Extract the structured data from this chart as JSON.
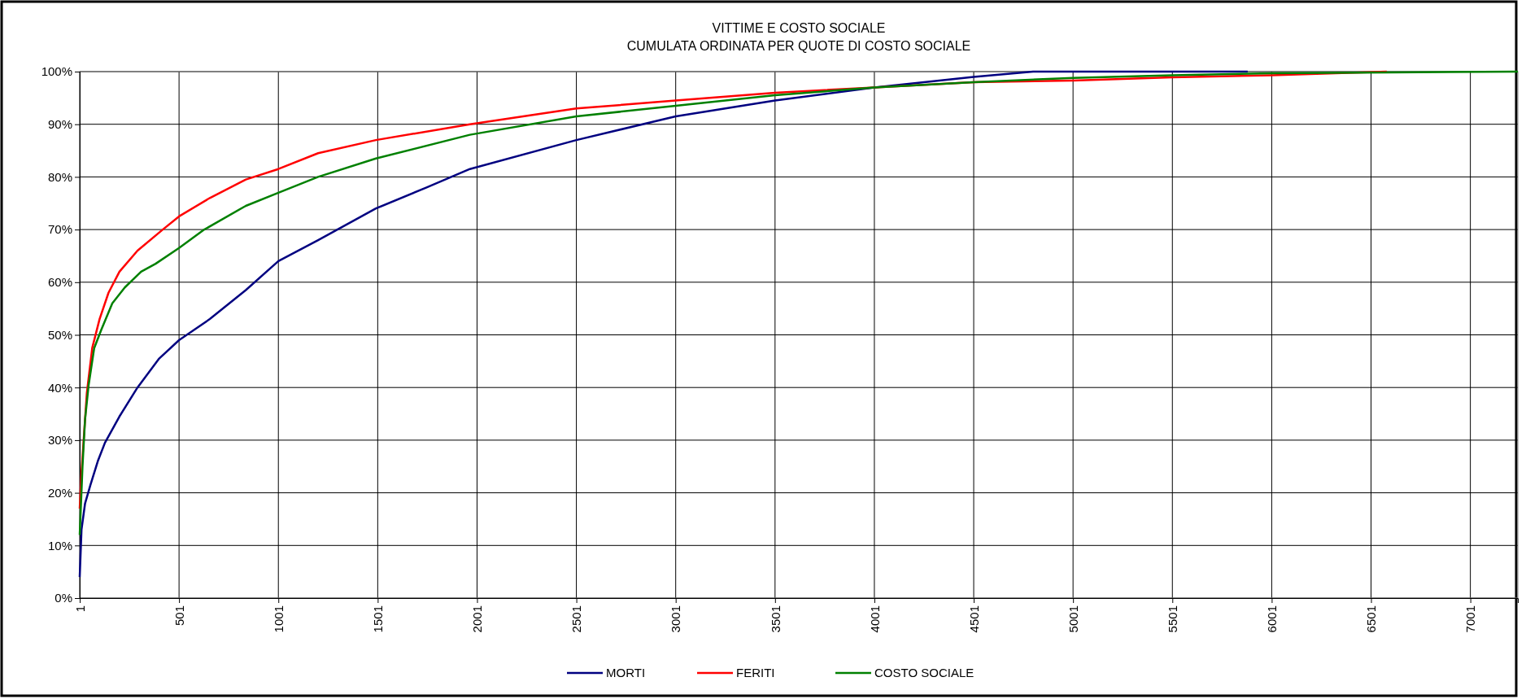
{
  "chart_data": {
    "type": "line",
    "title": "VITTIME E COSTO SOCIALE",
    "subtitle": "CUMULATA ORDINATA PER QUOTE DI COSTO SOCIALE",
    "xlim": [
      1,
      7240
    ],
    "xticks": [
      1,
      501,
      1001,
      1501,
      2001,
      2501,
      3001,
      3501,
      4001,
      4501,
      5001,
      5501,
      6001,
      6501,
      7001
    ],
    "ylim": [
      0,
      100
    ],
    "yticks": [
      {
        "value": 0,
        "label": "0%"
      },
      {
        "value": 10,
        "label": "10%"
      },
      {
        "value": 20,
        "label": "20%"
      },
      {
        "value": 30,
        "label": "30%"
      },
      {
        "value": 40,
        "label": "40%"
      },
      {
        "value": 50,
        "label": "50%"
      },
      {
        "value": 60,
        "label": "60%"
      },
      {
        "value": 70,
        "label": "70%"
      },
      {
        "value": 80,
        "label": "80%"
      },
      {
        "value": 90,
        "label": "90%"
      },
      {
        "value": 100,
        "label": "100%"
      }
    ],
    "grid": true,
    "legend": "bottom",
    "marker": "none",
    "line_style": "solid",
    "series": [
      {
        "name": "MORTI",
        "color": "#000080",
        "x": [
          1,
          10,
          28,
          55,
          92,
          128,
          201,
          292,
          401,
          501,
          656,
          837,
          1001,
          1201,
          1492,
          1747,
          1965,
          2501,
          3001,
          3501,
          4001,
          4501,
          4800,
          5880
        ],
        "values": [
          4,
          13,
          18,
          21.5,
          26,
          29.5,
          34.5,
          40,
          45.5,
          49,
          53,
          58.5,
          64,
          68,
          74,
          78,
          81.5,
          87,
          91.5,
          94.5,
          97,
          99,
          100,
          100
        ]
      },
      {
        "name": "FERITI",
        "color": "#ff0000",
        "x": [
          1,
          10,
          19,
          37,
          64,
          101,
          146,
          201,
          292,
          419,
          501,
          656,
          837,
          1001,
          1201,
          1492,
          1965,
          2501,
          3001,
          3501,
          4001,
          4501,
          5001,
          5501,
          6001,
          6580
        ],
        "values": [
          17,
          24,
          29,
          39,
          47.5,
          53,
          58,
          62,
          66,
          70,
          72.5,
          76,
          79.5,
          81.5,
          84.5,
          87,
          90,
          93,
          94.5,
          96,
          97,
          98,
          98.3,
          98.9,
          99.3,
          100
        ]
      },
      {
        "name": "COSTO SOCIALE",
        "color": "#008000",
        "x": [
          1,
          15,
          28,
          46,
          74,
          110,
          165,
          228,
          310,
          383,
          501,
          628,
          837,
          1001,
          1201,
          1492,
          1965,
          2501,
          3001,
          3501,
          4001,
          4501,
          5001,
          5501,
          6001,
          7240
        ],
        "values": [
          12,
          25,
          34,
          40.5,
          47.5,
          51,
          56,
          59,
          62,
          63.5,
          66.5,
          70,
          74.5,
          77,
          80,
          83.5,
          88,
          91.5,
          93.5,
          95.5,
          97,
          98,
          98.8,
          99.3,
          99.7,
          100
        ]
      }
    ]
  }
}
